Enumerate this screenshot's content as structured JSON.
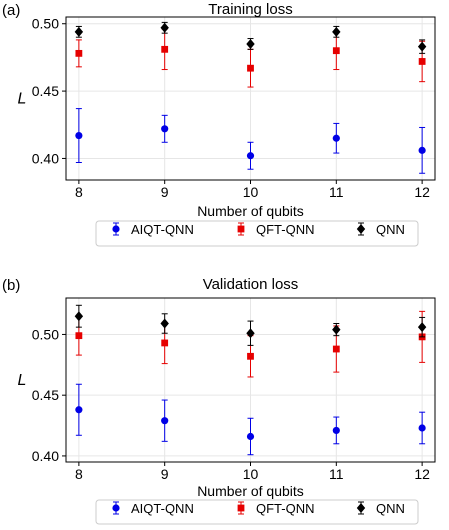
{
  "colors": {
    "AIQT-QNN": "#0000e6",
    "QFT-QNN": "#e60000",
    "QNN": "#000000",
    "grid": "#e6e6e6"
  },
  "chart_data": [
    {
      "type": "scatter",
      "panel_label": "(a)",
      "title": "Training loss",
      "xlabel": "Number of qubits",
      "ylabel": "L",
      "x": [
        8,
        9,
        10,
        11,
        12
      ],
      "xlim": [
        7.85,
        12.15
      ],
      "ylim": [
        0.384,
        0.505
      ],
      "yticks": [
        0.4,
        0.45,
        0.5
      ],
      "ytick_labels": [
        "0.40",
        "0.45",
        "0.50"
      ],
      "xtick_labels": [
        "8",
        "9",
        "10",
        "11",
        "12"
      ],
      "grid": true,
      "legend_position": "bottom",
      "series": [
        {
          "name": "AIQT-QNN",
          "marker": "circle",
          "values": [
            0.417,
            0.422,
            0.402,
            0.415,
            0.406
          ],
          "err": [
            0.02,
            0.01,
            0.01,
            0.011,
            0.017
          ]
        },
        {
          "name": "QFT-QNN",
          "marker": "square",
          "values": [
            0.478,
            0.481,
            0.467,
            0.48,
            0.472
          ],
          "err": [
            0.01,
            0.015,
            0.014,
            0.014,
            0.015
          ]
        },
        {
          "name": "QNN",
          "marker": "diamond",
          "values": [
            0.494,
            0.497,
            0.485,
            0.494,
            0.483
          ],
          "err": [
            0.004,
            0.004,
            0.004,
            0.004,
            0.005
          ]
        }
      ]
    },
    {
      "type": "scatter",
      "panel_label": "(b)",
      "title": "Validation loss",
      "xlabel": "Number of qubits",
      "ylabel": "L",
      "x": [
        8,
        9,
        10,
        11,
        12
      ],
      "xlim": [
        7.85,
        12.15
      ],
      "ylim": [
        0.395,
        0.53
      ],
      "yticks": [
        0.4,
        0.45,
        0.5
      ],
      "ytick_labels": [
        "0.40",
        "0.45",
        "0.50"
      ],
      "xtick_labels": [
        "8",
        "9",
        "10",
        "11",
        "12"
      ],
      "grid": true,
      "legend_position": "bottom",
      "series": [
        {
          "name": "AIQT-QNN",
          "marker": "circle",
          "values": [
            0.438,
            0.429,
            0.416,
            0.421,
            0.423
          ],
          "err": [
            0.021,
            0.017,
            0.015,
            0.011,
            0.013
          ]
        },
        {
          "name": "QFT-QNN",
          "marker": "square",
          "values": [
            0.499,
            0.493,
            0.482,
            0.488,
            0.498
          ],
          "err": [
            0.016,
            0.017,
            0.017,
            0.019,
            0.021
          ]
        },
        {
          "name": "QNN",
          "marker": "diamond",
          "values": [
            0.515,
            0.509,
            0.501,
            0.504,
            0.506
          ],
          "err": [
            0.009,
            0.008,
            0.01,
            0.005,
            0.008
          ]
        }
      ]
    }
  ]
}
